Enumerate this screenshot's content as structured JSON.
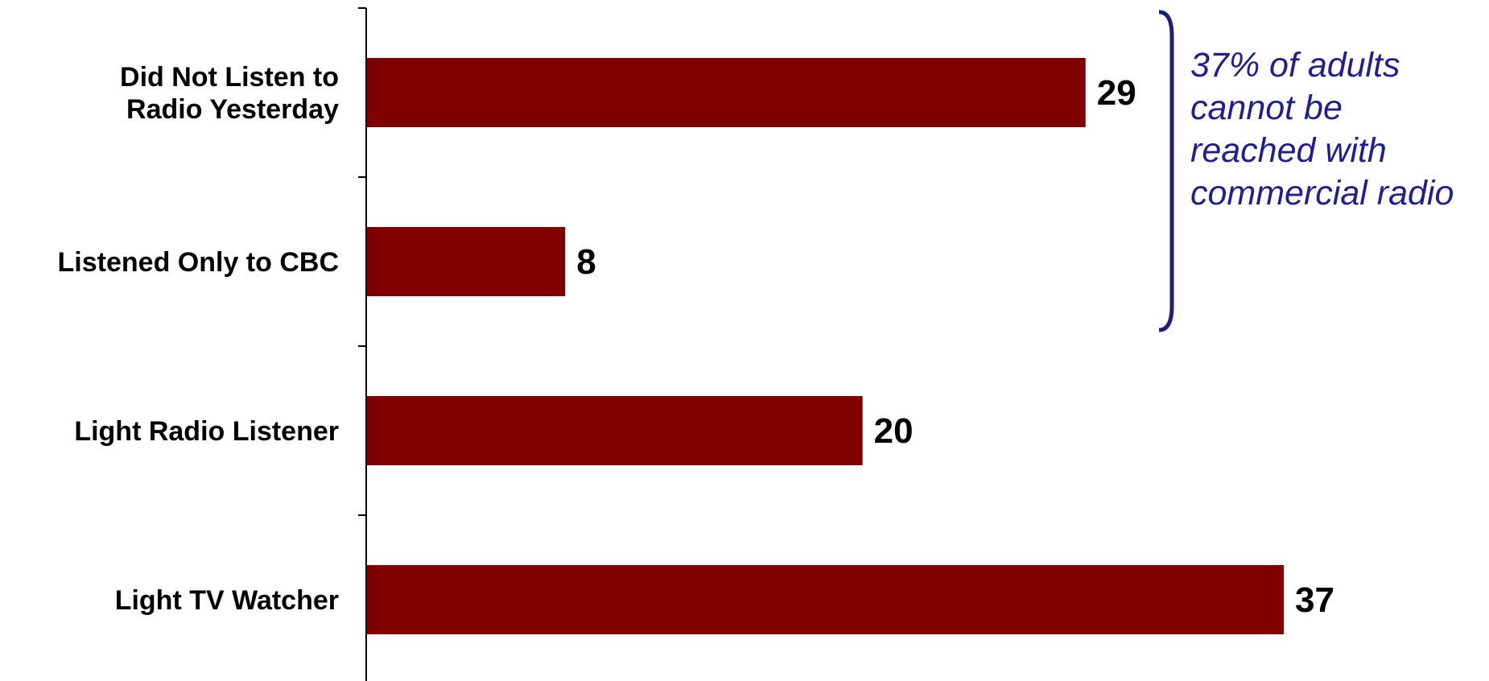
{
  "colors": {
    "bar": "#800000",
    "axis": "#000000",
    "annotation": "#1f1f8f",
    "brace": "#1f1f7a"
  },
  "chart_data": {
    "type": "bar",
    "orientation": "horizontal",
    "categories": [
      [
        "Did Not Listen to",
        "Radio Yesterday"
      ],
      [
        "Listened Only to CBC"
      ],
      [
        "Light Radio Listener"
      ],
      [
        "Light TV Watcher"
      ]
    ],
    "values": [
      29,
      8,
      20,
      37
    ],
    "data_labels": [
      "29",
      "8",
      "20",
      "37"
    ],
    "xlim": [
      0,
      37
    ],
    "grid": false,
    "title": "",
    "xlabel": "",
    "ylabel": "",
    "annotation": {
      "lines": [
        "37% of adults",
        "cannot be",
        "reached with",
        "commercial radio"
      ],
      "brace_spans_categories": [
        0,
        1
      ]
    }
  }
}
